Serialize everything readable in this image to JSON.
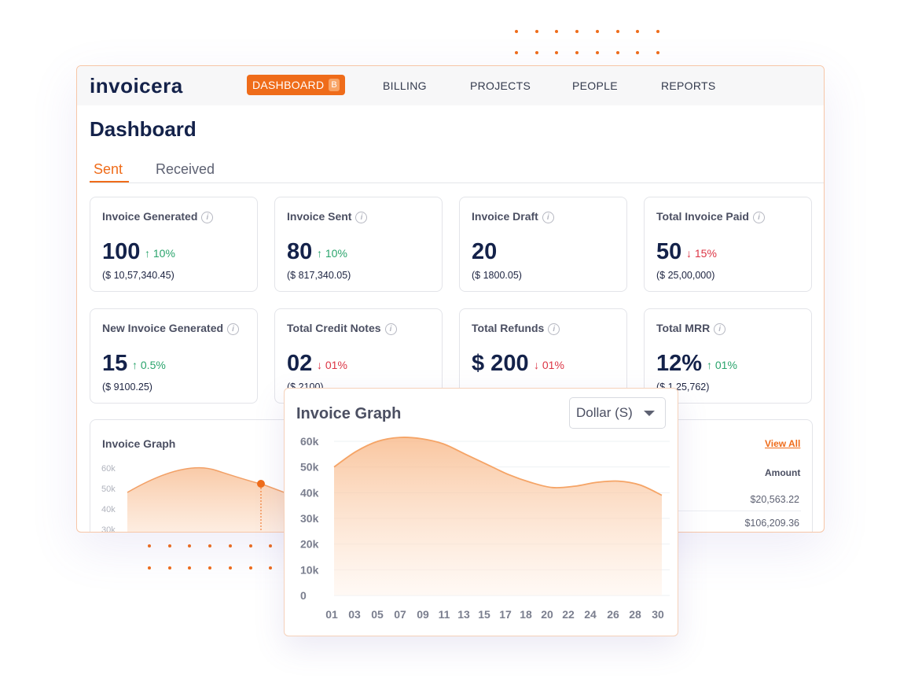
{
  "app": {
    "logo_text": "invoicera"
  },
  "nav": {
    "active": {
      "label": "DASHBOARD",
      "badge": "B"
    },
    "items": [
      {
        "label": "BILLING"
      },
      {
        "label": "PROJECTS"
      },
      {
        "label": "PEOPLE"
      },
      {
        "label": "REPORTS"
      }
    ]
  },
  "page": {
    "title": "Dashboard"
  },
  "tabs": {
    "sent": "Sent",
    "received": "Received",
    "active": "Sent"
  },
  "cards": [
    {
      "label": "Invoice Generated",
      "value": "100",
      "change": "↑ 10%",
      "trend": "up",
      "amount": "($ 10,57,340.45)"
    },
    {
      "label": "Invoice Sent",
      "value": "80",
      "change": "↑ 10%",
      "trend": "up",
      "amount": "($ 817,340.05)"
    },
    {
      "label": "Invoice Draft",
      "value": "20",
      "change": "",
      "trend": "none",
      "amount": "($ 1800.05)"
    },
    {
      "label": "Total Invoice Paid",
      "value": "50",
      "change": "↓ 15%",
      "trend": "down",
      "amount": "($ 25,00,000)"
    },
    {
      "label": "New Invoice Generated",
      "value": "15",
      "change": "↑ 0.5%",
      "trend": "up",
      "amount": "($ 9100.25)"
    },
    {
      "label": "Total Credit Notes",
      "value": "02",
      "change": "↓ 01%",
      "trend": "down",
      "amount": "($ 2100)"
    },
    {
      "label": "Total Refunds",
      "value": "$ 200",
      "change": "↓ 01%",
      "trend": "down",
      "amount": ""
    },
    {
      "label": "Total MRR",
      "value": "12%",
      "change": "↑ 01%",
      "trend": "up",
      "amount": "($ 1,25,762)"
    }
  ],
  "info_icon": {
    "glyph": "i"
  },
  "graph_card": {
    "title": "Invoice Graph",
    "view_all": "View All",
    "amount_header": "Amount",
    "amounts": [
      "$20,563.22",
      "$106,209.36"
    ],
    "y_ticks": [
      "60k",
      "50k",
      "40k",
      "30k"
    ]
  },
  "popup": {
    "title": "Invoice Graph",
    "select_value": "Dollar (S)"
  },
  "colors": {
    "accent": "#ef6c1a",
    "navy": "#14224a",
    "up": "#2aa46c",
    "down": "#dc3545"
  },
  "chart_data": {
    "type": "area",
    "title": "Invoice Graph",
    "x": [
      "01",
      "03",
      "05",
      "07",
      "09",
      "11",
      "13",
      "15",
      "17",
      "18",
      "20",
      "22",
      "24",
      "26",
      "28",
      "30"
    ],
    "y": [
      50000,
      56000,
      60000,
      61500,
      61000,
      59000,
      55000,
      51000,
      47000,
      44000,
      42000,
      42500,
      44000,
      44500,
      43000,
      39000
    ],
    "y_ticks": [
      "60k",
      "50k",
      "40k",
      "30k",
      "20k",
      "10k",
      "0"
    ],
    "ylim": [
      0,
      60000
    ],
    "grid": true,
    "color": "#f5a466"
  }
}
